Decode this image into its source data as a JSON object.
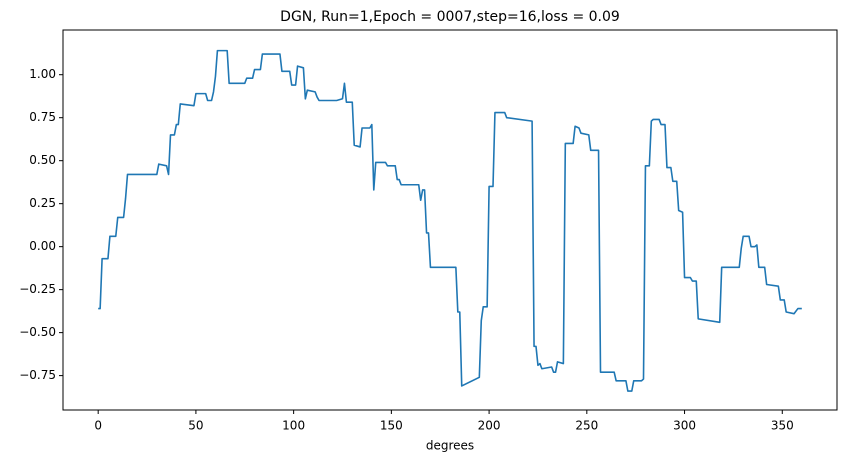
{
  "chart_data": {
    "type": "line",
    "title": "DGN, Run=1,Epoch = 0007,step=16,loss = 0.09",
    "x_label": "degrees",
    "color": "#1f77b4",
    "xlim": [
      -18,
      378
    ],
    "ylim": [
      -0.95,
      1.26
    ],
    "xticks": [
      0,
      50,
      100,
      150,
      200,
      250,
      300,
      350
    ],
    "yticks": [
      {
        "value": -0.75,
        "label": "−0.75"
      },
      {
        "value": -0.5,
        "label": "−0.50"
      },
      {
        "value": -0.25,
        "label": "−0.25"
      },
      {
        "value": 0,
        "label": "0.00"
      },
      {
        "value": 0.25,
        "label": "0.25"
      },
      {
        "value": 0.5,
        "label": "0.50"
      },
      {
        "value": 0.75,
        "label": "0.75"
      },
      {
        "value": 1,
        "label": "1.00"
      }
    ],
    "x": [
      0,
      1,
      2,
      5,
      6,
      9,
      10,
      13,
      14,
      15,
      30,
      31,
      35,
      36,
      37,
      39,
      40,
      41,
      42,
      49,
      50,
      55,
      56,
      58,
      59,
      60,
      61,
      66,
      67,
      75,
      76,
      79,
      80,
      83,
      84,
      93,
      94,
      98,
      99,
      101,
      102,
      105,
      106,
      107,
      111,
      112,
      113,
      122,
      125,
      126,
      127,
      130,
      131,
      134,
      135,
      139,
      140,
      141,
      142,
      147,
      148,
      152,
      153,
      154,
      155,
      164,
      165,
      166,
      167,
      168,
      169,
      170,
      183,
      184,
      185,
      186,
      195,
      196,
      197,
      199,
      200,
      202,
      203,
      208,
      209,
      222,
      223,
      224,
      225,
      226,
      227,
      232,
      233,
      234,
      235,
      238,
      239,
      243,
      244,
      246,
      247,
      251,
      252,
      256,
      257,
      264,
      265,
      270,
      271,
      273,
      274,
      278,
      279,
      280,
      282,
      283,
      284,
      287,
      288,
      290,
      291,
      293,
      294,
      296,
      297,
      299,
      300,
      303,
      304,
      306,
      307,
      318,
      319,
      328,
      329,
      330,
      333,
      334,
      336,
      337,
      338,
      341,
      342,
      348,
      349,
      351,
      352,
      356,
      358,
      360
    ],
    "values": [
      -0.36,
      -0.36,
      -0.07,
      -0.07,
      0.06,
      0.06,
      0.17,
      0.17,
      0.28,
      0.42,
      0.42,
      0.48,
      0.47,
      0.42,
      0.65,
      0.65,
      0.71,
      0.71,
      0.83,
      0.82,
      0.89,
      0.89,
      0.85,
      0.85,
      0.9,
      0.99,
      1.14,
      1.14,
      0.95,
      0.95,
      0.98,
      0.98,
      1.03,
      1.03,
      1.12,
      1.12,
      1.02,
      1.02,
      0.94,
      0.94,
      1.05,
      1.04,
      0.86,
      0.91,
      0.9,
      0.87,
      0.85,
      0.85,
      0.86,
      0.95,
      0.84,
      0.84,
      0.59,
      0.58,
      0.69,
      0.69,
      0.71,
      0.33,
      0.49,
      0.49,
      0.47,
      0.47,
      0.39,
      0.39,
      0.36,
      0.36,
      0.27,
      0.33,
      0.33,
      0.08,
      0.08,
      -0.12,
      -0.12,
      -0.38,
      -0.38,
      -0.81,
      -0.76,
      -0.43,
      -0.35,
      -0.35,
      0.35,
      0.35,
      0.78,
      0.78,
      0.75,
      0.73,
      -0.58,
      -0.58,
      -0.69,
      -0.68,
      -0.71,
      -0.7,
      -0.73,
      -0.73,
      -0.67,
      -0.68,
      0.6,
      0.6,
      0.7,
      0.69,
      0.66,
      0.65,
      0.56,
      0.56,
      -0.73,
      -0.73,
      -0.78,
      -0.78,
      -0.84,
      -0.84,
      -0.78,
      -0.78,
      -0.77,
      0.47,
      0.47,
      0.73,
      0.74,
      0.74,
      0.71,
      0.71,
      0.46,
      0.46,
      0.38,
      0.38,
      0.21,
      0.2,
      -0.18,
      -0.18,
      -0.2,
      -0.2,
      -0.42,
      -0.44,
      -0.12,
      -0.12,
      -0.01,
      0.06,
      0.06,
      0,
      0,
      0.01,
      -0.12,
      -0.12,
      -0.22,
      -0.23,
      -0.31,
      -0.31,
      -0.38,
      -0.39,
      -0.36,
      -0.36
    ]
  }
}
